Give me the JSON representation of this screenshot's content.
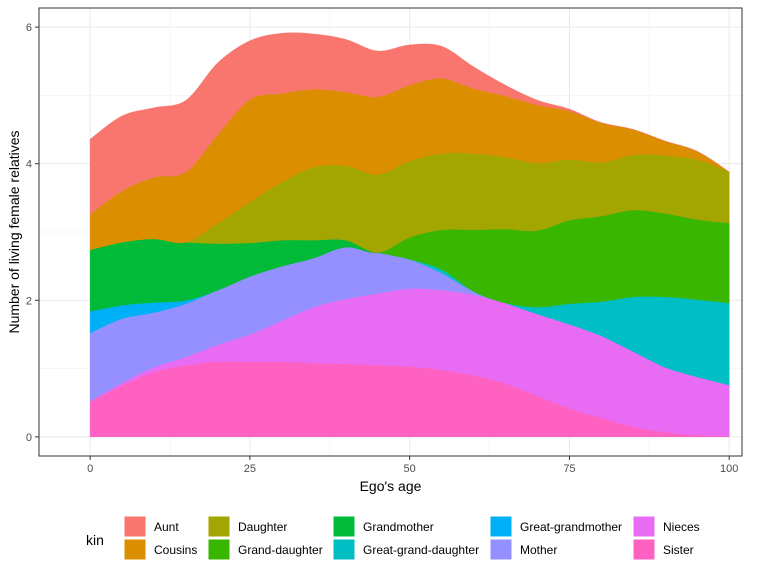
{
  "chart_data": {
    "type": "area",
    "stacked": true,
    "xlabel": "Ego's age",
    "ylabel": "Number of living female relatives",
    "xlim": [
      -8,
      102
    ],
    "ylim": [
      -0.28,
      6.28
    ],
    "x_ticks": [
      0,
      25,
      50,
      75,
      100
    ],
    "y_ticks": [
      0,
      2,
      4,
      6
    ],
    "grid": true,
    "legend_title": "kin",
    "legend_position": "bottom",
    "x": [
      0,
      5,
      10,
      15,
      20,
      25,
      30,
      35,
      40,
      45,
      50,
      55,
      60,
      65,
      70,
      75,
      80,
      85,
      90,
      95,
      100
    ],
    "series": [
      {
        "name": "Sister",
        "color": "#FF61C3",
        "values": [
          0.52,
          0.75,
          0.95,
          1.05,
          1.1,
          1.1,
          1.1,
          1.08,
          1.07,
          1.05,
          1.03,
          0.98,
          0.9,
          0.78,
          0.6,
          0.42,
          0.28,
          0.15,
          0.07,
          0.03,
          0.01
        ]
      },
      {
        "name": "Nieces",
        "color": "#E76BF3",
        "values": [
          0.0,
          0.04,
          0.07,
          0.12,
          0.25,
          0.4,
          0.6,
          0.82,
          0.95,
          1.05,
          1.14,
          1.17,
          1.18,
          1.18,
          1.2,
          1.23,
          1.2,
          1.1,
          0.95,
          0.85,
          0.75
        ]
      },
      {
        "name": "Mother",
        "color": "#9590FF",
        "values": [
          1.0,
          0.94,
          0.8,
          0.78,
          0.8,
          0.85,
          0.8,
          0.72,
          0.76,
          0.6,
          0.43,
          0.25,
          0.05,
          0.0,
          0.0,
          0.0,
          0.0,
          0.0,
          0.0,
          0.0,
          0.0
        ]
      },
      {
        "name": "Great-grandmother",
        "color": "#00B0F6",
        "values": [
          0.32,
          0.2,
          0.15,
          0.05,
          0.0,
          0.0,
          0.0,
          0.0,
          0.0,
          0.0,
          0.0,
          0.0,
          0.0,
          0.0,
          0.0,
          0.0,
          0.0,
          0.0,
          0.0,
          0.0,
          0.0
        ]
      },
      {
        "name": "Great-grand-daughter",
        "color": "#00BFC4",
        "values": [
          0.0,
          0.0,
          0.0,
          0.0,
          0.0,
          0.0,
          0.0,
          0.0,
          0.0,
          0.0,
          0.0,
          0.05,
          0.0,
          0.0,
          0.1,
          0.3,
          0.5,
          0.8,
          1.03,
          1.13,
          1.2
        ]
      },
      {
        "name": "Grand-daughter",
        "color": "#39B600",
        "values": [
          0.0,
          0.0,
          0.0,
          0.0,
          0.0,
          0.0,
          0.0,
          0.0,
          0.0,
          0.0,
          0.32,
          0.58,
          0.9,
          1.08,
          1.12,
          1.22,
          1.25,
          1.27,
          1.22,
          1.17,
          1.17
        ]
      },
      {
        "name": "Grandmother",
        "color": "#00BA38",
        "values": [
          0.9,
          0.92,
          0.93,
          0.85,
          0.68,
          0.49,
          0.38,
          0.26,
          0.1,
          0.0,
          0.0,
          0.0,
          0.0,
          0.0,
          0.0,
          0.0,
          0.0,
          0.0,
          0.0,
          0.0,
          0.0
        ]
      },
      {
        "name": "Daughter",
        "color": "#A3A500",
        "values": [
          0.0,
          0.0,
          0.0,
          0.0,
          0.3,
          0.6,
          0.85,
          1.07,
          1.09,
          1.14,
          1.12,
          1.12,
          1.12,
          1.06,
          0.99,
          0.89,
          0.79,
          0.81,
          0.85,
          0.88,
          0.75
        ]
      },
      {
        "name": "Cousins",
        "color": "#DB8E00",
        "values": [
          0.52,
          0.75,
          0.9,
          1.03,
          1.3,
          1.5,
          1.3,
          1.14,
          1.08,
          1.14,
          1.11,
          1.1,
          0.95,
          0.89,
          0.85,
          0.71,
          0.58,
          0.37,
          0.21,
          0.12,
          0.0
        ]
      },
      {
        "name": "Aunt",
        "color": "#F8766D",
        "values": [
          1.1,
          1.1,
          1.02,
          1.05,
          1.05,
          0.86,
          0.88,
          0.81,
          0.77,
          0.67,
          0.59,
          0.47,
          0.32,
          0.16,
          0.07,
          0.03,
          0.0,
          0.0,
          0.0,
          0.0,
          0.0
        ]
      }
    ],
    "legend_order": [
      "Aunt",
      "Cousins",
      "Daughter",
      "Grand-daughter",
      "Grandmother",
      "Great-grand-daughter",
      "Great-grandmother",
      "Mother",
      "Nieces",
      "Sister"
    ]
  }
}
